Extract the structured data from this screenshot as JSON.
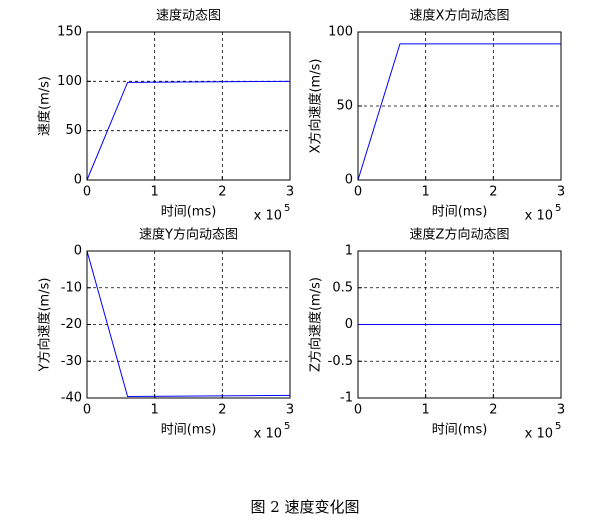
{
  "chart_data": [
    {
      "type": "line",
      "title": "速度动态图",
      "xlabel": "时间(ms)",
      "ylabel": "速度(m/s)",
      "x_multiplier": {
        "base": "x 10",
        "exponent": "5"
      },
      "x": [
        0,
        0.6,
        3
      ],
      "values": [
        0,
        99,
        100
      ],
      "color": "#0000ff",
      "xlim": [
        0,
        3
      ],
      "xticks": [
        0,
        1,
        2,
        3
      ],
      "ylim": [
        0,
        150
      ],
      "yticks": [
        0,
        50,
        100,
        150
      ],
      "grid": true
    },
    {
      "type": "line",
      "title": "速度X方向动态图",
      "xlabel": "时间(ms)",
      "ylabel": "X方向速度(m/s)",
      "x_multiplier": {
        "base": "x 10",
        "exponent": "5"
      },
      "x": [
        0,
        0.62,
        3
      ],
      "values": [
        0,
        92,
        92
      ],
      "color": "#0000ff",
      "xlim": [
        0,
        3
      ],
      "xticks": [
        0,
        1,
        2,
        3
      ],
      "ylim": [
        0,
        100
      ],
      "yticks": [
        0,
        50,
        100
      ],
      "grid": true
    },
    {
      "type": "line",
      "title": "速度Y方向动态图",
      "xlabel": "时间(ms)",
      "ylabel": "Y方向速度(m/s)",
      "x_multiplier": {
        "base": "x 10",
        "exponent": "5"
      },
      "x": [
        0,
        0.6,
        3
      ],
      "values": [
        0,
        -39.6,
        -39.3
      ],
      "color": "#0000ff",
      "xlim": [
        0,
        3
      ],
      "xticks": [
        0,
        1,
        2,
        3
      ],
      "ylim": [
        -40,
        0
      ],
      "yticks": [
        -40,
        -30,
        -20,
        -10,
        0
      ],
      "grid": true
    },
    {
      "type": "line",
      "title": "速度Z方向动态图",
      "xlabel": "时间(ms)",
      "ylabel": "Z方向速度(m/s)",
      "x_multiplier": {
        "base": "x 10",
        "exponent": "5"
      },
      "x": [
        0,
        3
      ],
      "values": [
        0,
        0
      ],
      "color": "#0000ff",
      "xlim": [
        0,
        3
      ],
      "xticks": [
        0,
        1,
        2,
        3
      ],
      "ylim": [
        -1,
        1
      ],
      "yticks": [
        -1,
        -0.5,
        0,
        0.5,
        1
      ],
      "grid": true
    }
  ],
  "caption": "图 2  速度变化图"
}
